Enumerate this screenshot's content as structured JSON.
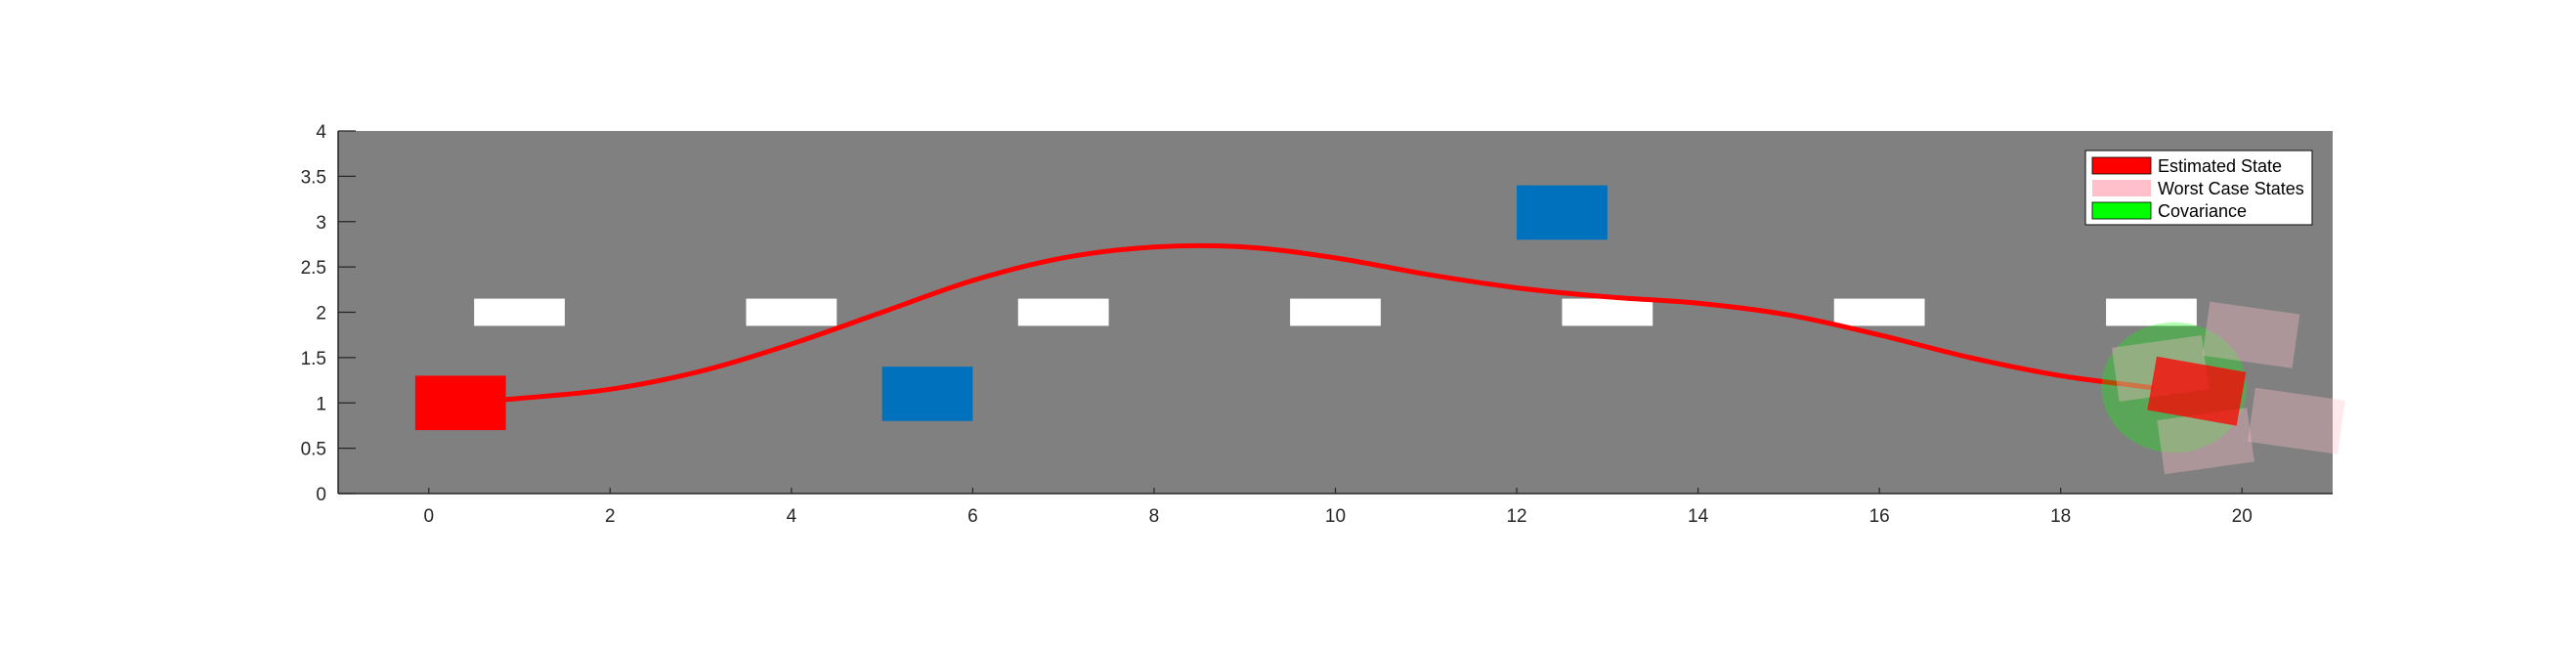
{
  "chart_data": {
    "type": "scatter",
    "title": "",
    "xlabel": "",
    "ylabel": "",
    "xlim": [
      -1,
      21
    ],
    "ylim": [
      0,
      4
    ],
    "xticks": [
      0,
      2,
      4,
      6,
      8,
      10,
      12,
      14,
      16,
      18,
      20
    ],
    "yticks": [
      0,
      0.5,
      1,
      1.5,
      2,
      2.5,
      3,
      3.5,
      4
    ],
    "xtick_labels": [
      "0",
      "2",
      "4",
      "6",
      "8",
      "10",
      "12",
      "14",
      "16",
      "18",
      "20"
    ],
    "ytick_labels": [
      "0",
      "0.5",
      "1",
      "1.5",
      "2",
      "2.5",
      "3",
      "3.5",
      "4"
    ],
    "grid": false,
    "background_color": "#808080",
    "lane_markings": {
      "color": "#ffffff",
      "y": 2,
      "length": 1,
      "height": 0.3,
      "x_centers": [
        1,
        4,
        7,
        10,
        13,
        16,
        19
      ]
    },
    "obstacles": {
      "color": "#0072BD",
      "items": [
        {
          "x_center": 5.5,
          "y_center": 1.1,
          "width": 1,
          "height": 0.6
        },
        {
          "x_center": 12.5,
          "y_center": 3.1,
          "width": 1,
          "height": 0.6
        }
      ]
    },
    "trajectory": {
      "color": "#ff0000",
      "x": [
        0.3,
        1,
        2,
        3,
        4,
        5,
        6,
        7,
        8,
        9,
        10,
        11,
        12,
        13,
        14,
        15,
        16,
        17,
        18,
        19
      ],
      "y": [
        1.0,
        1.05,
        1.15,
        1.35,
        1.65,
        2.0,
        2.35,
        2.6,
        2.72,
        2.72,
        2.6,
        2.42,
        2.27,
        2.17,
        2.1,
        1.97,
        1.75,
        1.5,
        1.3,
        1.17
      ]
    },
    "initial_state": {
      "x_center": 0.35,
      "y_center": 1.0,
      "width": 1,
      "height": 0.6,
      "angle_deg": 0,
      "color": "#ff0000"
    },
    "estimated_state": {
      "x_center": 19.5,
      "y_center": 1.13,
      "width": 1,
      "height": 0.6,
      "angle_deg": -10,
      "color": "#ff0000"
    },
    "worst_case_states": {
      "color": "#ffc0cb",
      "items": [
        {
          "x_center": 19.1,
          "y_center": 1.38,
          "width": 1,
          "height": 0.6,
          "angle_deg": 8
        },
        {
          "x_center": 20.1,
          "y_center": 1.75,
          "width": 1,
          "height": 0.6,
          "angle_deg": -8
        },
        {
          "x_center": 19.6,
          "y_center": 0.58,
          "width": 1,
          "height": 0.6,
          "angle_deg": 8
        },
        {
          "x_center": 20.6,
          "y_center": 0.8,
          "width": 1,
          "height": 0.6,
          "angle_deg": -8
        }
      ]
    },
    "covariance": {
      "x_center": 19.25,
      "y_center": 1.17,
      "radius_x": 0.8,
      "radius_y": 0.72,
      "color": "#00ff00"
    },
    "legend": {
      "location": "top-right",
      "entries": [
        {
          "label": "Estimated State",
          "color": "#ff0000"
        },
        {
          "label": "Worst Case States",
          "color": "#ffc0cb"
        },
        {
          "label": "Covariance",
          "color": "#00ff00"
        }
      ]
    }
  }
}
